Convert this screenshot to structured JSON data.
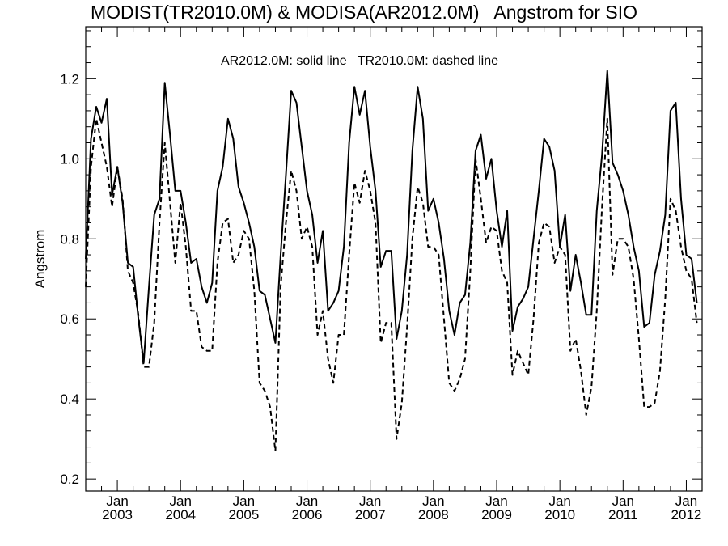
{
  "chart_data": {
    "type": "line",
    "title": "MODIST(TR2010.0M) & MODISA(AR2012.0M)   Angstrom for SIO",
    "annotation": "AR2012.0M: solid line   TR2010.0M: dashed line",
    "ylabel": "Angstrom",
    "xlabel": "",
    "x_start": "2002-07",
    "x_step": "monthly",
    "xlim": [
      "2002-07",
      "2012-04"
    ],
    "ylim": [
      0.17,
      1.33
    ],
    "y_ticks": [
      0.2,
      0.4,
      0.6,
      0.8,
      1.0,
      1.2
    ],
    "y_tick_labels": [
      "0.2",
      "0.4",
      "0.6",
      "0.8",
      "1.0",
      "1.2"
    ],
    "x_ticks": [
      {
        "date": "2003-01",
        "month": "Jan",
        "year": "2003"
      },
      {
        "date": "2004-01",
        "month": "Jan",
        "year": "2004"
      },
      {
        "date": "2005-01",
        "month": "Jan",
        "year": "2005"
      },
      {
        "date": "2006-01",
        "month": "Jan",
        "year": "2006"
      },
      {
        "date": "2007-01",
        "month": "Jan",
        "year": "2007"
      },
      {
        "date": "2008-01",
        "month": "Jan",
        "year": "2008"
      },
      {
        "date": "2009-01",
        "month": "Jan",
        "year": "2009"
      },
      {
        "date": "2010-01",
        "month": "Jan",
        "year": "2010"
      },
      {
        "date": "2011-01",
        "month": "Jan",
        "year": "2011"
      },
      {
        "date": "2012-01",
        "month": "Jan",
        "year": "2012"
      }
    ],
    "grid": false,
    "series": [
      {
        "style": "solid",
        "color": "#000000",
        "values": [
          0.75,
          1.05,
          1.13,
          1.09,
          1.15,
          0.91,
          0.98,
          0.89,
          0.74,
          0.73,
          0.6,
          0.49,
          0.68,
          0.86,
          0.9,
          1.19,
          1.06,
          0.92,
          0.92,
          0.84,
          0.74,
          0.75,
          0.68,
          0.64,
          0.69,
          0.92,
          0.98,
          1.1,
          1.05,
          0.93,
          0.89,
          0.84,
          0.78,
          0.67,
          0.66,
          0.6,
          0.54,
          0.76,
          0.96,
          1.17,
          1.14,
          1.03,
          0.92,
          0.86,
          0.74,
          0.82,
          0.62,
          0.64,
          0.67,
          0.78,
          1.04,
          1.18,
          1.11,
          1.17,
          1.03,
          0.92,
          0.73,
          0.77,
          0.77,
          0.55,
          0.62,
          0.76,
          1.02,
          1.18,
          1.1,
          0.87,
          0.9,
          0.84,
          0.75,
          0.62,
          0.56,
          0.64,
          0.66,
          0.79,
          1.02,
          1.06,
          0.95,
          1.0,
          0.87,
          0.78,
          0.87,
          0.57,
          0.63,
          0.65,
          0.68,
          0.8,
          0.92,
          1.05,
          1.03,
          0.97,
          0.78,
          0.86,
          0.67,
          0.76,
          0.69,
          0.61,
          0.61,
          0.87,
          1.01,
          1.22,
          0.99,
          0.96,
          0.92,
          0.86,
          0.78,
          0.72,
          0.58,
          0.59,
          0.71,
          0.77,
          0.86,
          1.12,
          1.14,
          0.9,
          0.76,
          0.75,
          0.64
        ]
      },
      {
        "style": "dashed",
        "color": "#000000",
        "values": [
          0.68,
          0.98,
          1.1,
          1.04,
          0.98,
          0.88,
          0.98,
          0.9,
          0.72,
          0.69,
          0.61,
          0.48,
          0.48,
          0.59,
          0.84,
          1.04,
          0.89,
          0.74,
          0.89,
          0.78,
          0.62,
          0.62,
          0.53,
          0.52,
          0.52,
          0.74,
          0.84,
          0.85,
          0.74,
          0.76,
          0.82,
          0.8,
          0.67,
          0.44,
          0.42,
          0.38,
          0.27,
          0.68,
          0.84,
          0.97,
          0.92,
          0.8,
          0.83,
          0.78,
          0.56,
          0.62,
          0.5,
          0.44,
          0.56,
          0.56,
          0.76,
          0.94,
          0.89,
          0.97,
          0.92,
          0.84,
          0.54,
          0.59,
          0.59,
          0.3,
          0.39,
          0.58,
          0.8,
          0.93,
          0.89,
          0.78,
          0.78,
          0.76,
          0.6,
          0.44,
          0.42,
          0.45,
          0.5,
          0.72,
          1.0,
          0.9,
          0.79,
          0.83,
          0.82,
          0.72,
          0.69,
          0.46,
          0.52,
          0.49,
          0.46,
          0.6,
          0.79,
          0.84,
          0.83,
          0.74,
          0.78,
          0.76,
          0.52,
          0.55,
          0.47,
          0.36,
          0.43,
          0.62,
          0.88,
          1.1,
          0.71,
          0.8,
          0.8,
          0.78,
          0.7,
          0.55,
          0.38,
          0.38,
          0.39,
          0.47,
          0.65,
          0.9,
          0.87,
          0.78,
          0.72,
          0.7,
          0.59
        ]
      }
    ]
  }
}
